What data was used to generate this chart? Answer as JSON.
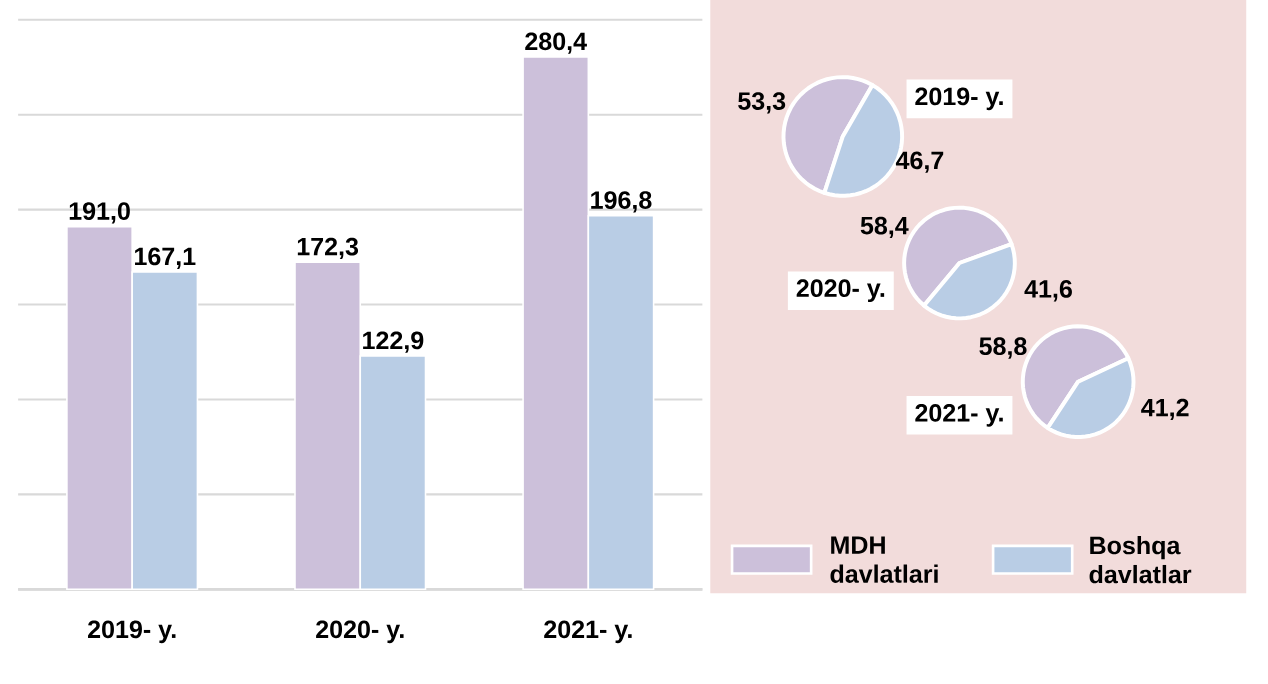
{
  "chart_data": [
    {
      "type": "bar",
      "categories": [
        "2019- y.",
        "2020- y.",
        "2021- y."
      ],
      "ylim": [
        0,
        300
      ],
      "yticks": [
        {
          "value": 0,
          "label": null
        },
        {
          "value": 50,
          "label": null
        },
        {
          "value": 100,
          "label": null
        },
        {
          "value": 150,
          "label": null
        },
        {
          "value": 200,
          "label": null
        },
        {
          "value": 250,
          "label": null
        },
        {
          "value": 300,
          "label": null
        }
      ],
      "grid": "y",
      "tick_labels": "x",
      "legend": "bottom right",
      "series": [
        {
          "name": "MDH davlatlari",
          "color": "#ccc0da",
          "values": [
            191.0,
            172.3,
            280.4
          ],
          "value_labels": [
            "191,0",
            "172,3",
            "280,4"
          ]
        },
        {
          "name": "Boshqa davlatlar",
          "color": "#b9cde5",
          "values": [
            167.1,
            122.9,
            196.8
          ],
          "value_labels": [
            "167,1",
            "122,9",
            "196,8"
          ]
        }
      ]
    },
    {
      "type": "pie",
      "title": "2019- y.",
      "categories": [
        null,
        null
      ],
      "values": [
        53.3,
        46.7
      ],
      "colors": [
        "#ccc0da",
        "#b9cde5"
      ],
      "value_labels": [
        "53,3",
        "46,7"
      ]
    },
    {
      "type": "pie",
      "title": "2020- y.",
      "categories": [
        null,
        null
      ],
      "values": [
        58.4,
        41.6
      ],
      "colors": [
        "#ccc0da",
        "#b9cde5"
      ],
      "value_labels": [
        "58,4",
        "41,6"
      ]
    },
    {
      "type": "pie",
      "title": "2021- y.",
      "categories": [
        null,
        null
      ],
      "values": [
        58.8,
        41.2
      ],
      "colors": [
        "#ccc0da",
        "#b9cde5"
      ],
      "value_labels": [
        "58,8",
        "41,2"
      ]
    }
  ]
}
